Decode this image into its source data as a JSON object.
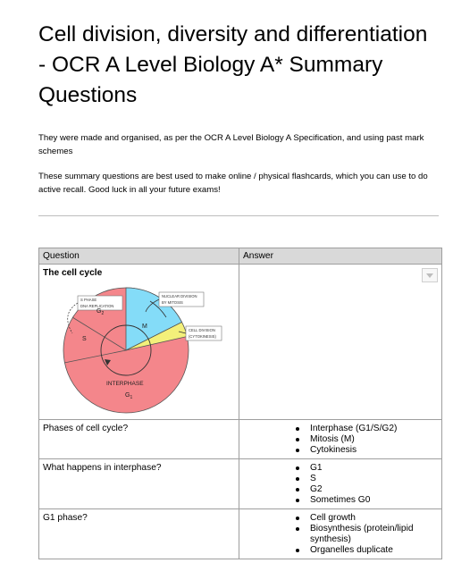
{
  "document": {
    "title": "Cell division, diversity and differentiation  - OCR A Level Biology A* Summary Questions",
    "intro_1": "They were made and organised, as per the OCR A Level Biology A Specification, and using past mark schemes",
    "intro_2": "These summary questions are best used to make online / physical flashcards, which you can use to do active recall. Good luck in all your future exams!"
  },
  "table": {
    "headers": {
      "question": "Question",
      "answer": "Answer"
    },
    "cell_cycle": {
      "title": "The cell cycle",
      "diagram": {
        "s_phase": "S PHASE",
        "dna_replication": "DNA REPLICATION",
        "g2": "G",
        "g2_sub": "2",
        "m": "M",
        "s": "S",
        "nuclear_division": "NUCLEAR DIVISION",
        "by_mitosis": "BY MITOSIS",
        "cell_division": "CELL DIVISION",
        "cytokinesis": "(CYTOKINESIS)",
        "interphase": "INTERPHASE",
        "g1": "G",
        "g1_sub": "1",
        "colors": {
          "interphase": "#f4868b",
          "mitosis": "#84dcf8",
          "cytokinesis": "#f3f07a"
        }
      }
    },
    "rows": [
      {
        "question": "Phases of cell cycle?",
        "answers": [
          "Interphase (G1/S/G2)",
          "Mitosis (M)",
          "Cytokinesis"
        ]
      },
      {
        "question": "What happens in interphase?",
        "answers": [
          "G1",
          "S",
          "G2",
          "Sometimes G0"
        ]
      },
      {
        "question": "G1 phase?",
        "answers": [
          "Cell growth",
          "Biosynthesis (protein/lipid synthesis)",
          "Organelles duplicate"
        ]
      }
    ]
  }
}
